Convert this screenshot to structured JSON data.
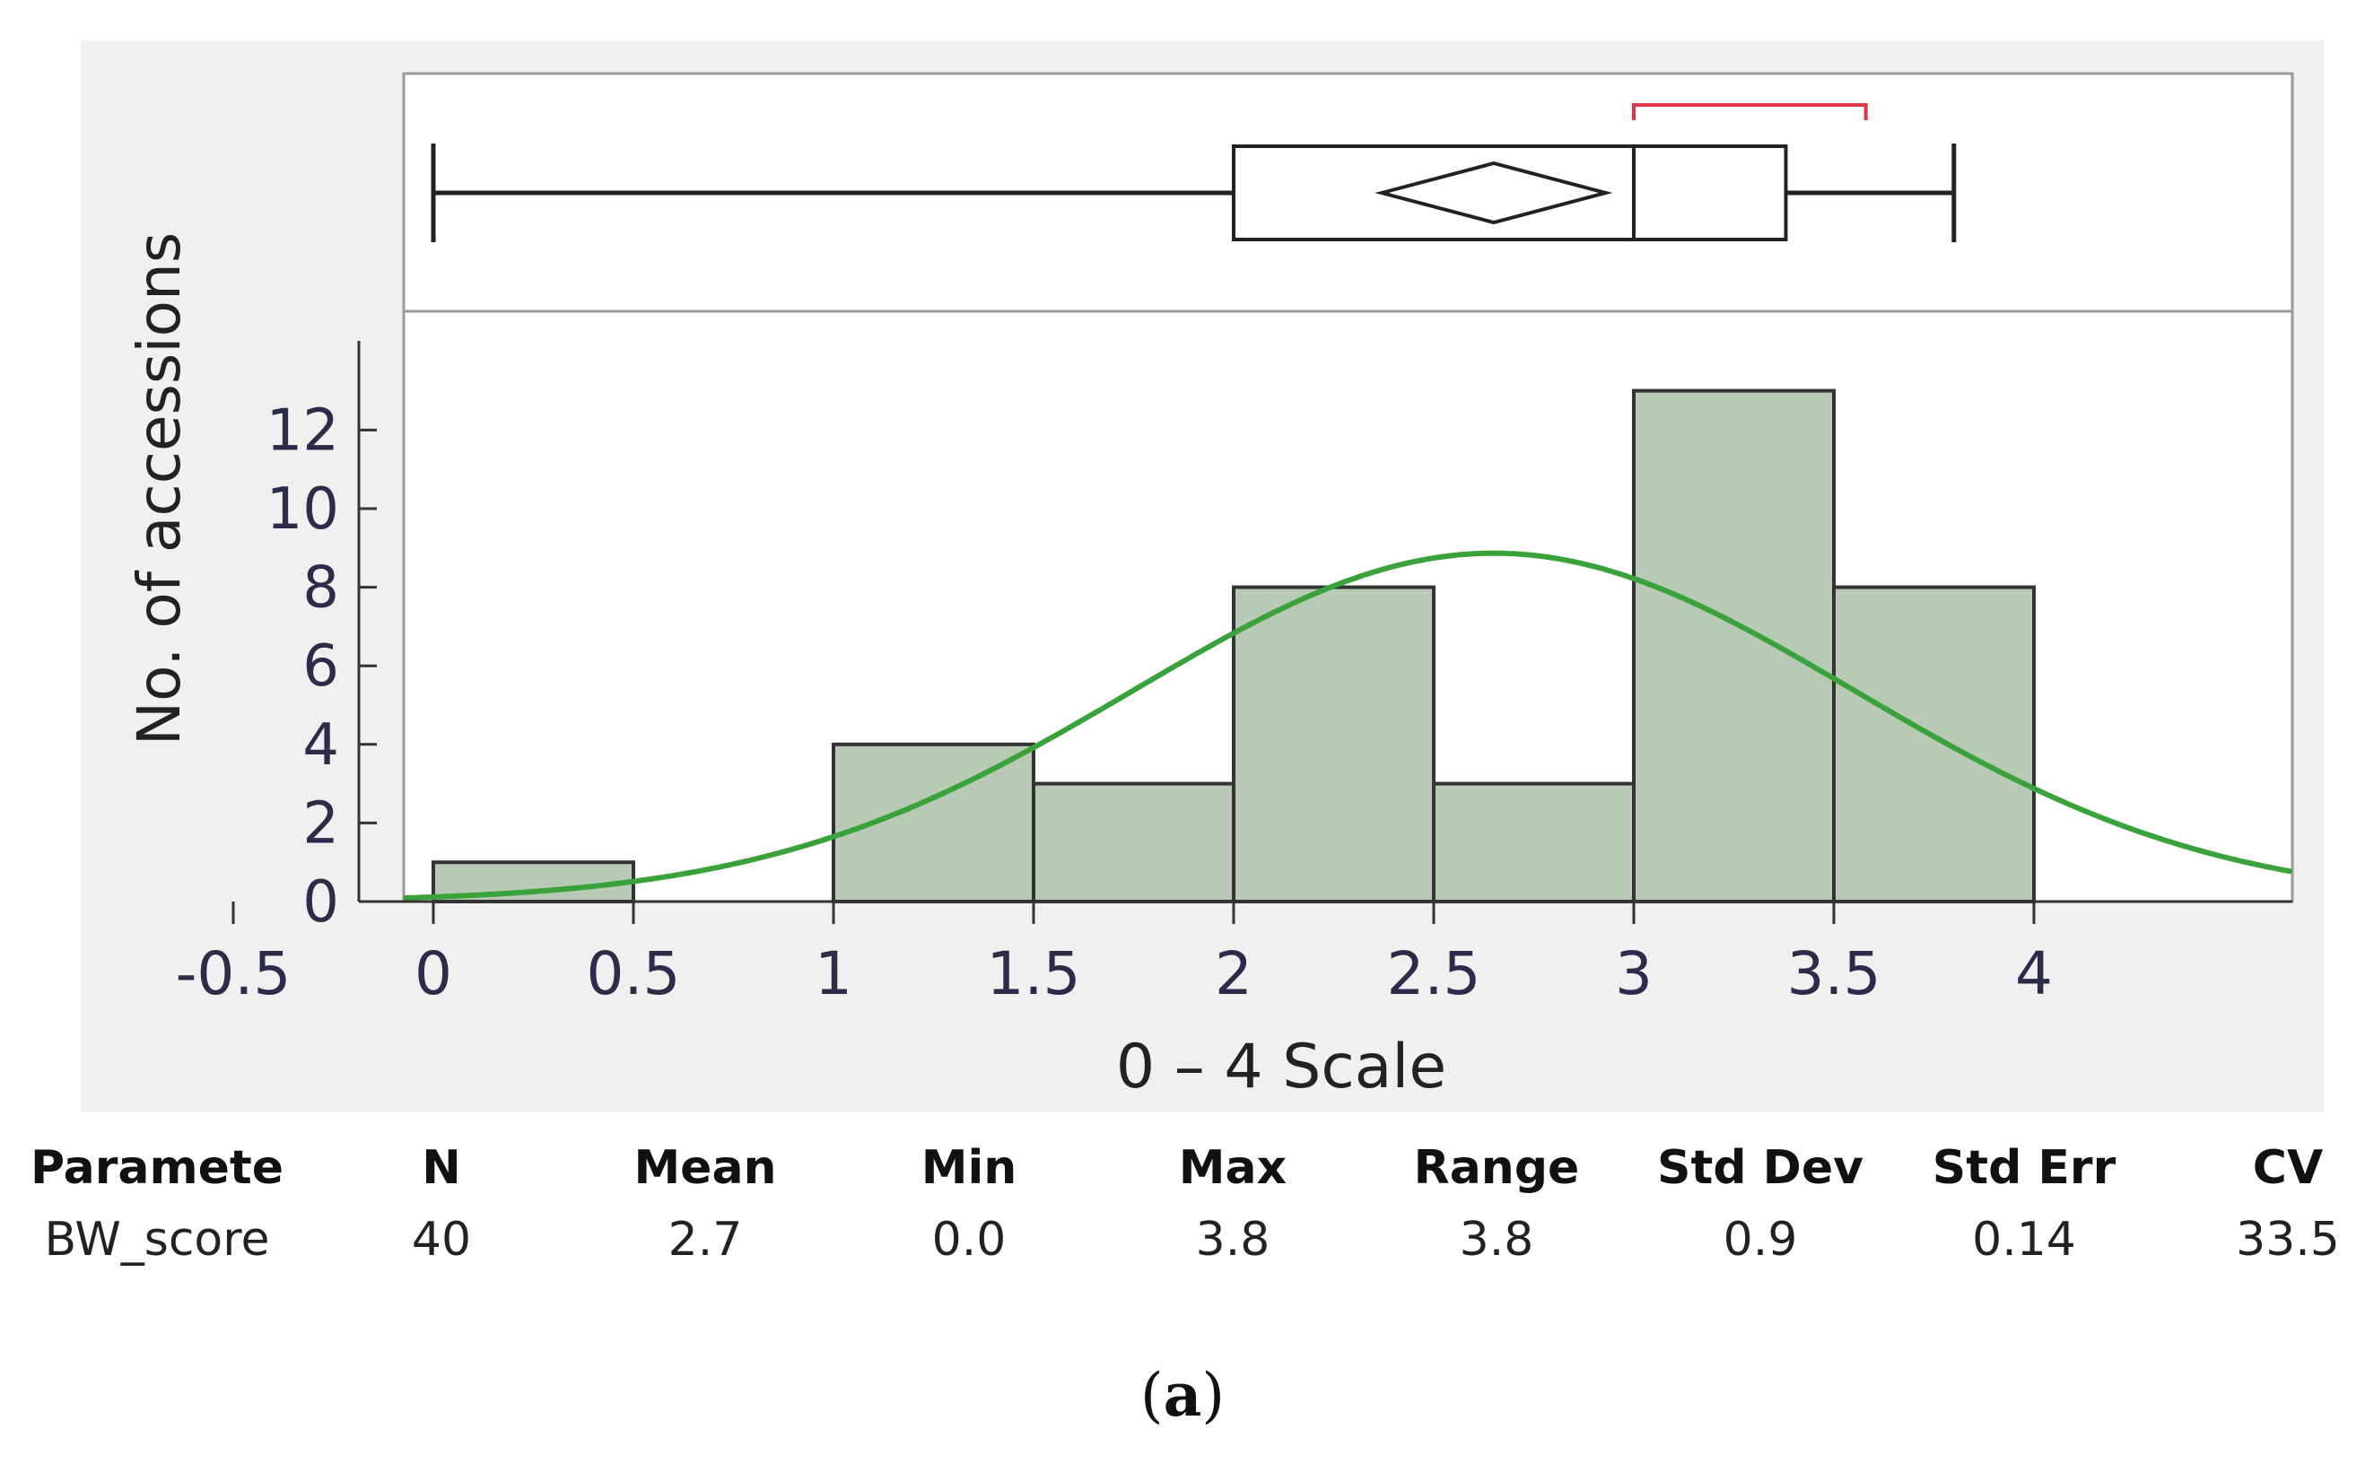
{
  "chart_data": {
    "type": "histogram",
    "xlabel": "0 – 4 Scale",
    "ylabel": "No. of accessions",
    "x_ticks": [
      "-0.5",
      "0",
      "0.5",
      "1",
      "1.5",
      "2",
      "2.5",
      "3",
      "3.5",
      "4"
    ],
    "y_ticks": [
      "0",
      "2",
      "4",
      "6",
      "8",
      "10",
      "12"
    ],
    "xlim": [
      -0.55,
      4.05
    ],
    "ylim": [
      0,
      14.5
    ],
    "bins": [
      {
        "start": 0.0,
        "end": 0.5,
        "count": 1
      },
      {
        "start": 1.0,
        "end": 1.5,
        "count": 4
      },
      {
        "start": 1.5,
        "end": 2.0,
        "count": 3
      },
      {
        "start": 2.0,
        "end": 2.5,
        "count": 8
      },
      {
        "start": 2.5,
        "end": 3.0,
        "count": 3
      },
      {
        "start": 3.0,
        "end": 3.5,
        "count": 13
      },
      {
        "start": 3.5,
        "end": 4.0,
        "count": 8
      }
    ],
    "normal_fit": {
      "mean": 2.65,
      "sd": 0.9,
      "n": 40,
      "bin_width": 0.5
    },
    "boxplot": {
      "min": 0.0,
      "q1": 2.0,
      "median": 3.0,
      "q3": 3.38,
      "max": 3.8,
      "mean": 2.65,
      "mean_ci": [
        2.37,
        2.93
      ],
      "shortest_half": [
        3.0,
        3.58
      ]
    },
    "colors": {
      "bar_fill": "#b8c9b6",
      "bar_edge": "#333333",
      "curve": "#3aa23a",
      "bracket": "#e0344a",
      "panel_bg": "#f0f0f0",
      "tick_label": "#2d2b4a"
    }
  },
  "stats_table": {
    "headers": [
      "Paramete",
      "N",
      "Mean",
      "Min",
      "Max",
      "Range",
      "Std Dev",
      "Std Err",
      "CV"
    ],
    "values": [
      "BW_score",
      "40",
      "2.7",
      "0.0",
      "3.8",
      "3.8",
      "0.9",
      "0.14",
      "33.5"
    ]
  },
  "caption": {
    "open": "(",
    "letter": "a",
    "close": ")"
  }
}
